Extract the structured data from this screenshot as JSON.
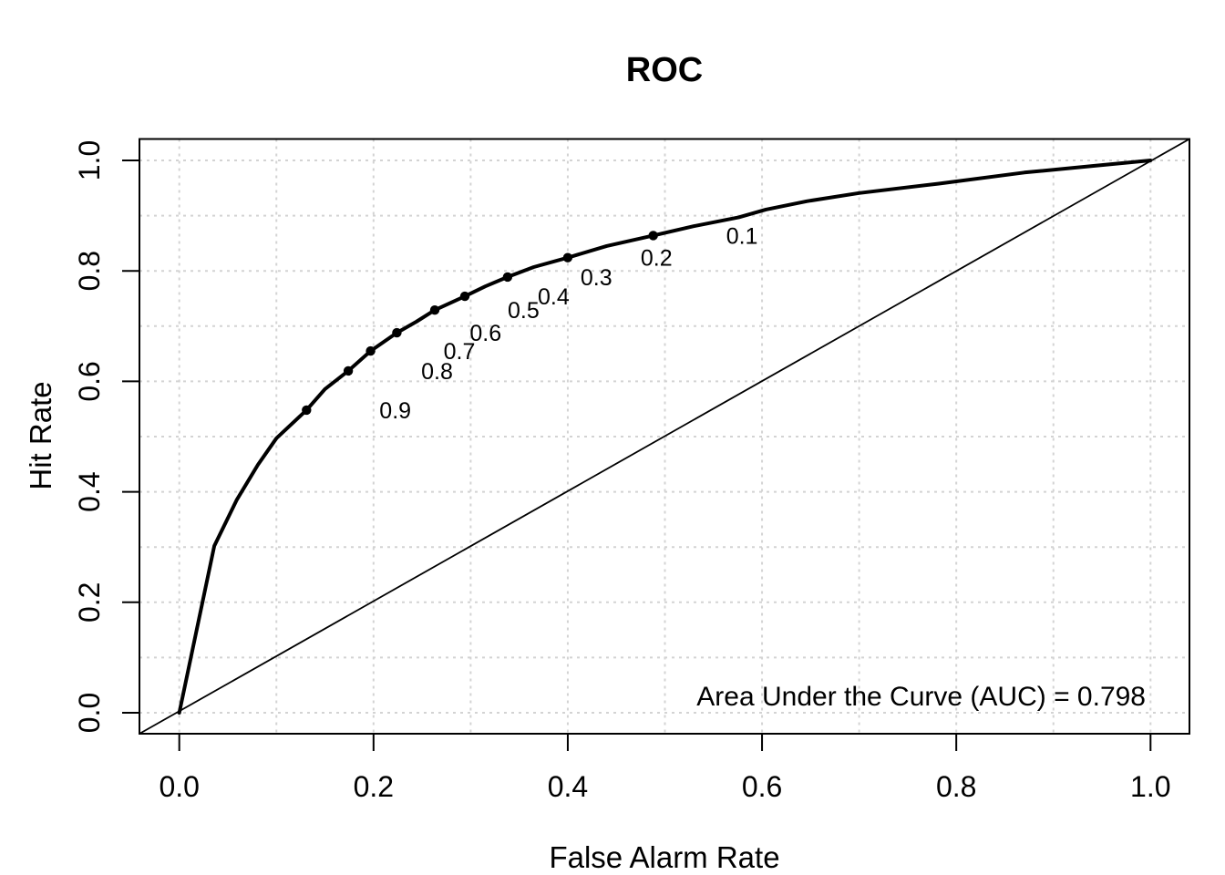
{
  "chart_data": {
    "type": "line",
    "title": "ROC",
    "xlabel": "False Alarm Rate",
    "ylabel": "Hit Rate",
    "xlim": [
      0,
      1
    ],
    "ylim": [
      0,
      1
    ],
    "x_ticks": [
      "0.0",
      "0.2",
      "0.4",
      "0.6",
      "0.8",
      "1.0"
    ],
    "y_ticks": [
      "0.0",
      "0.2",
      "0.4",
      "0.6",
      "0.8",
      "1.0"
    ],
    "grid": {
      "step": 0.1,
      "style": "dotted",
      "color": "#D3D3D3"
    },
    "diagonal_reference_line": true,
    "annotation": "Area Under the Curve (AUC) = 0.798",
    "auc": 0.798,
    "colors": {
      "curve": "#000000",
      "grid": "#D3D3D3",
      "background": "#FFFFFF"
    },
    "roc_curve": [
      [
        0.0,
        0.0
      ],
      [
        0.036,
        0.302
      ],
      [
        0.059,
        0.385
      ],
      [
        0.081,
        0.449
      ],
      [
        0.1,
        0.497
      ],
      [
        0.131,
        0.548
      ],
      [
        0.15,
        0.586
      ],
      [
        0.174,
        0.619
      ],
      [
        0.197,
        0.655
      ],
      [
        0.224,
        0.688
      ],
      [
        0.244,
        0.708
      ],
      [
        0.263,
        0.729
      ],
      [
        0.294,
        0.754
      ],
      [
        0.315,
        0.772
      ],
      [
        0.338,
        0.789
      ],
      [
        0.365,
        0.807
      ],
      [
        0.4,
        0.824
      ],
      [
        0.44,
        0.845
      ],
      [
        0.488,
        0.864
      ],
      [
        0.53,
        0.881
      ],
      [
        0.576,
        0.897
      ],
      [
        0.604,
        0.911
      ],
      [
        0.646,
        0.926
      ],
      [
        0.7,
        0.941
      ],
      [
        0.782,
        0.958
      ],
      [
        0.87,
        0.978
      ],
      [
        0.94,
        0.99
      ],
      [
        1.0,
        1.0
      ]
    ],
    "threshold_points": [
      {
        "label": "0.1",
        "x": 0.488,
        "y": 0.864
      },
      {
        "label": "0.2",
        "x": 0.4,
        "y": 0.824
      },
      {
        "label": "0.3",
        "x": 0.338,
        "y": 0.789
      },
      {
        "label": "0.4",
        "x": 0.294,
        "y": 0.754
      },
      {
        "label": "0.5",
        "x": 0.263,
        "y": 0.729
      },
      {
        "label": "0.6",
        "x": 0.224,
        "y": 0.688
      },
      {
        "label": "0.7",
        "x": 0.197,
        "y": 0.655
      },
      {
        "label": "0.8",
        "x": 0.174,
        "y": 0.619
      },
      {
        "label": "0.9",
        "x": 0.131,
        "y": 0.548
      }
    ]
  }
}
